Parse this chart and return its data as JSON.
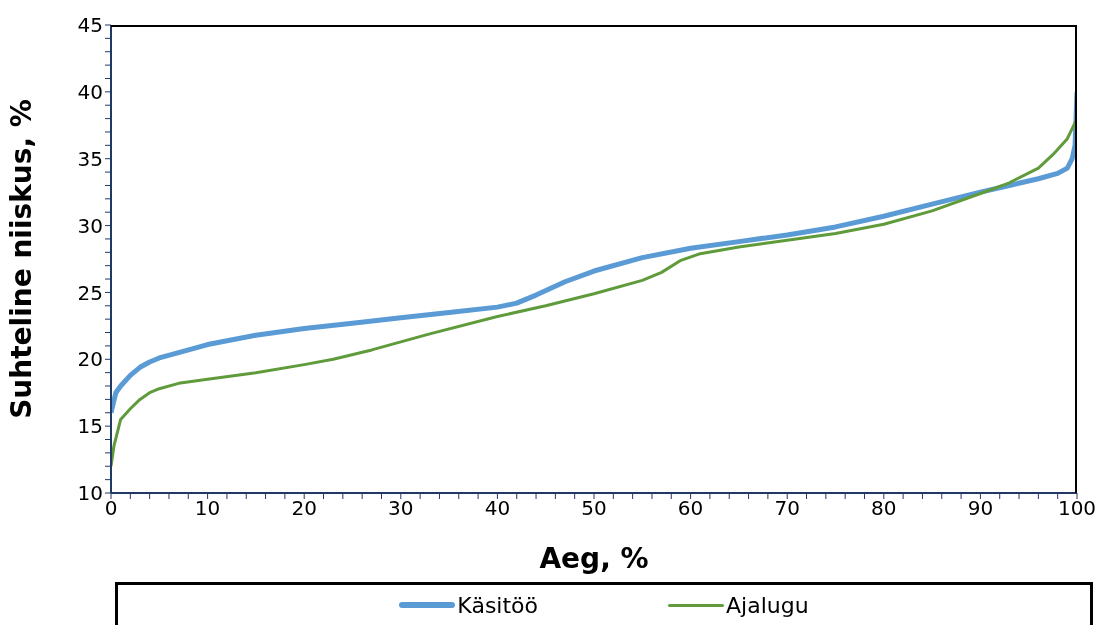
{
  "chart_data": {
    "type": "line",
    "xlabel": "Aeg, %",
    "ylabel": "Suhteline niiskus, %",
    "xlim": [
      0,
      100
    ],
    "ylim": [
      10,
      45
    ],
    "xticks": [
      0,
      {
        "value": 2,
        "label": null
      },
      {
        "value": 4,
        "label": null
      },
      {
        "value": 6,
        "label": null
      },
      {
        "value": 8,
        "label": null
      },
      10,
      {
        "value": 12,
        "label": null
      },
      {
        "value": 14,
        "label": null
      },
      {
        "value": 16,
        "label": null
      },
      {
        "value": 18,
        "label": null
      },
      20,
      {
        "value": 22,
        "label": null
      },
      {
        "value": 24,
        "label": null
      },
      {
        "value": 26,
        "label": null
      },
      {
        "value": 28,
        "label": null
      },
      30,
      {
        "value": 32,
        "label": null
      },
      {
        "value": 34,
        "label": null
      },
      {
        "value": 36,
        "label": null
      },
      {
        "value": 38,
        "label": null
      },
      40,
      {
        "value": 42,
        "label": null
      },
      {
        "value": 44,
        "label": null
      },
      {
        "value": 46,
        "label": null
      },
      {
        "value": 48,
        "label": null
      },
      50,
      {
        "value": 52,
        "label": null
      },
      {
        "value": 54,
        "label": null
      },
      {
        "value": 56,
        "label": null
      },
      {
        "value": 58,
        "label": null
      },
      60,
      {
        "value": 62,
        "label": null
      },
      {
        "value": 64,
        "label": null
      },
      {
        "value": 66,
        "label": null
      },
      {
        "value": 68,
        "label": null
      },
      70,
      {
        "value": 72,
        "label": null
      },
      {
        "value": 74,
        "label": null
      },
      {
        "value": 76,
        "label": null
      },
      {
        "value": 78,
        "label": null
      },
      80,
      {
        "value": 82,
        "label": null
      },
      {
        "value": 84,
        "label": null
      },
      {
        "value": 86,
        "label": null
      },
      {
        "value": 88,
        "label": null
      },
      90,
      {
        "value": 92,
        "label": null
      },
      {
        "value": 94,
        "label": null
      },
      {
        "value": 96,
        "label": null
      },
      {
        "value": 98,
        "label": null
      },
      100
    ],
    "yticks": [
      10,
      {
        "value": 11,
        "label": null
      },
      {
        "value": 12,
        "label": null
      },
      {
        "value": 13,
        "label": null
      },
      {
        "value": 14,
        "label": null
      },
      15,
      {
        "value": 16,
        "label": null
      },
      {
        "value": 17,
        "label": null
      },
      {
        "value": 18,
        "label": null
      },
      {
        "value": 19,
        "label": null
      },
      20,
      {
        "value": 21,
        "label": null
      },
      {
        "value": 22,
        "label": null
      },
      {
        "value": 23,
        "label": null
      },
      {
        "value": 24,
        "label": null
      },
      25,
      {
        "value": 26,
        "label": null
      },
      {
        "value": 27,
        "label": null
      },
      {
        "value": 28,
        "label": null
      },
      {
        "value": 29,
        "label": null
      },
      30,
      {
        "value": 31,
        "label": null
      },
      {
        "value": 32,
        "label": null
      },
      {
        "value": 33,
        "label": null
      },
      {
        "value": 34,
        "label": null
      },
      35,
      {
        "value": 36,
        "label": null
      },
      {
        "value": 37,
        "label": null
      },
      {
        "value": 38,
        "label": null
      },
      {
        "value": 39,
        "label": null
      },
      40,
      {
        "value": 41,
        "label": null
      },
      {
        "value": 42,
        "label": null
      },
      {
        "value": 43,
        "label": null
      },
      {
        "value": 44,
        "label": null
      },
      45
    ],
    "legend": "bottom",
    "marker": "none",
    "line_style": "solid",
    "series": [
      {
        "name": "Käsitöö",
        "color": "#5b9bd5",
        "x": [
          0,
          0.5,
          1,
          2,
          3,
          4,
          5,
          7,
          10,
          15,
          20,
          25,
          30,
          35,
          40,
          42,
          44,
          47,
          50,
          55,
          60,
          65,
          70,
          75,
          80,
          85,
          90,
          93,
          96,
          98,
          99,
          99.5,
          99.8,
          100
        ],
        "values": [
          16,
          17.5,
          18,
          18.8,
          19.4,
          19.8,
          20.1,
          20.5,
          21.1,
          21.8,
          22.3,
          22.7,
          23.1,
          23.5,
          23.9,
          24.2,
          24.8,
          25.8,
          26.6,
          27.6,
          28.3,
          28.8,
          29.3,
          29.9,
          30.7,
          31.6,
          32.5,
          33,
          33.5,
          33.9,
          34.3,
          35,
          36,
          40
        ]
      },
      {
        "name": "Ajalugu",
        "color": "#5f9b3b",
        "x": [
          0,
          0.3,
          1,
          2,
          3,
          4,
          5,
          7,
          10,
          15,
          20,
          23,
          27,
          30,
          33,
          40,
          45,
          50,
          55,
          57,
          59,
          61,
          65,
          70,
          75,
          80,
          85,
          90,
          93,
          96,
          97.5,
          99,
          100
        ],
        "values": [
          12,
          13.5,
          15.5,
          16.3,
          17,
          17.5,
          17.8,
          18.2,
          18.5,
          19,
          19.6,
          20,
          20.7,
          21.3,
          21.9,
          23.2,
          24,
          24.9,
          25.9,
          26.5,
          27.4,
          27.9,
          28.4,
          28.9,
          29.4,
          30.1,
          31.1,
          32.4,
          33.2,
          34.3,
          35.3,
          36.5,
          38
        ]
      }
    ]
  }
}
